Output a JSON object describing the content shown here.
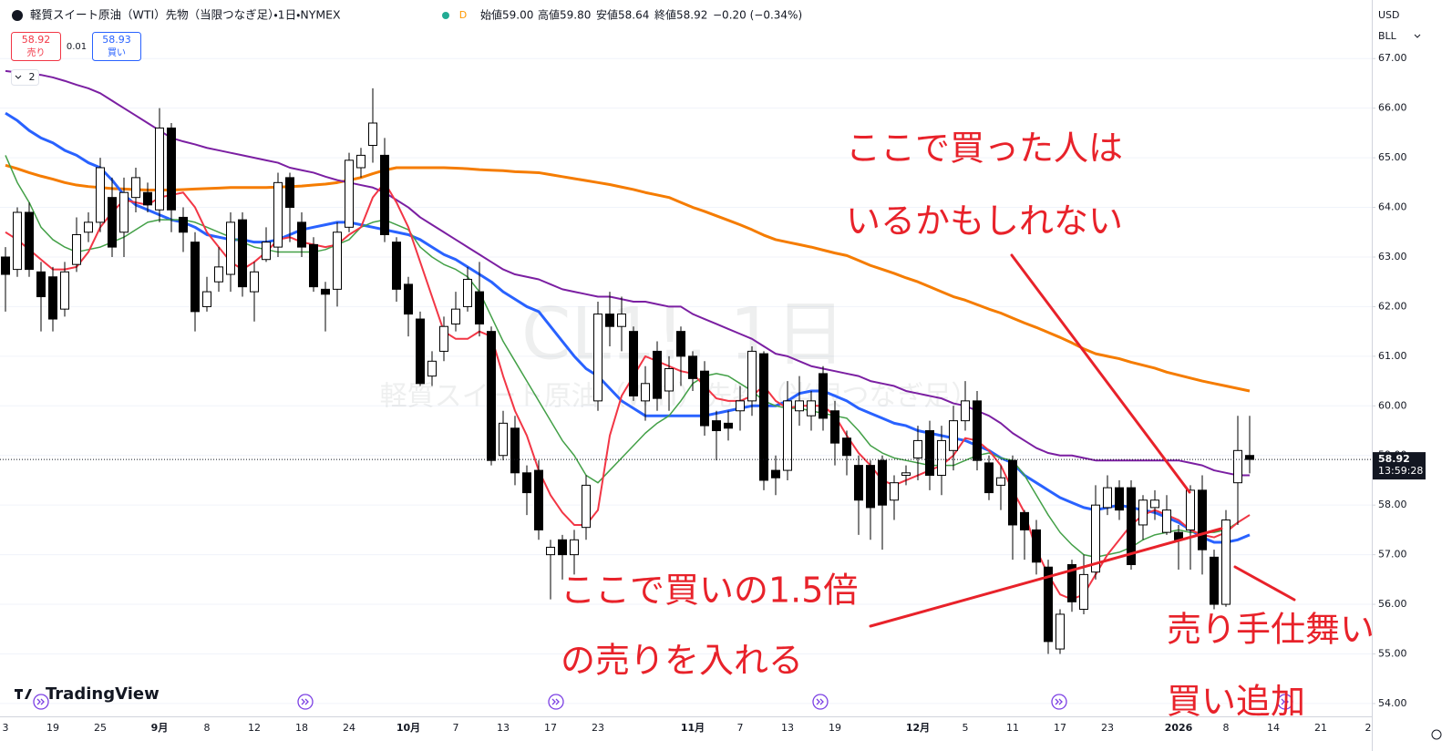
{
  "header": {
    "title": "軽質スイート原油（WTI）先物（当限つなぎ足）・1日・NYMEX",
    "status": "D",
    "ohlc": [
      "始値59.00",
      "高値59.80",
      "安値58.64",
      "終値58.92",
      "−0.20 (−0.34%)"
    ]
  },
  "trade": {
    "sell_price": "58.92",
    "sell_label": "売り",
    "spread": "0.01",
    "buy_price": "58.93",
    "buy_label": "買い"
  },
  "indicators_count": "2",
  "watermark": {
    "symbol": "CL1!, 1日",
    "description": "軽質スイート原油（WTI）先物（当限つなぎ足）"
  },
  "axis": {
    "currency": "USD",
    "unit": "BLL"
  },
  "branding": "TradingView",
  "annotations": [
    "ここで買った人は",
    "いるかもしれない",
    "ここで買いの1.5倍",
    "の売りを入れる",
    "売り手仕舞い",
    "買い追加"
  ],
  "chart_data": {
    "type": "candlestick",
    "categories": [
      "3",
      null,
      null,
      null,
      "19",
      null,
      null,
      null,
      "25",
      null,
      null,
      null,
      null,
      "9月",
      null,
      null,
      null,
      "8",
      null,
      null,
      null,
      "12",
      null,
      null,
      null,
      "18",
      null,
      null,
      null,
      "24",
      null,
      null,
      null,
      null,
      "10月",
      null,
      null,
      null,
      "7",
      null,
      null,
      null,
      "13",
      null,
      null,
      null,
      "17",
      null,
      null,
      null,
      "23",
      null,
      null,
      null,
      null,
      null,
      null,
      null,
      "11月",
      null,
      null,
      null,
      "7",
      null,
      null,
      null,
      "13",
      null,
      null,
      null,
      "19",
      null,
      null,
      null,
      null,
      null,
      null,
      "12月",
      null,
      null,
      null,
      "5",
      null,
      null,
      null,
      "11",
      null,
      null,
      null,
      "17",
      null,
      null,
      null,
      "23",
      null,
      null,
      null,
      null,
      null,
      "2026",
      null,
      null,
      null,
      "8",
      null,
      null,
      null,
      "14",
      null,
      null,
      null,
      "21",
      null,
      null,
      null,
      "2"
    ],
    "open": [
      63.0,
      62.75,
      63.9,
      62.7,
      62.6,
      61.95,
      62.85,
      63.5,
      63.7,
      64.2,
      63.5,
      64.2,
      64.3,
      63.95,
      65.6,
      63.8,
      63.3,
      62.0,
      62.5,
      62.65,
      63.75,
      62.3,
      62.95,
      63.2,
      64.6,
      63.7,
      63.25,
      62.35,
      62.35,
      63.6,
      64.8,
      65.25,
      65.05,
      63.3,
      62.45,
      61.75,
      60.6,
      61.1,
      61.65,
      62.0,
      62.3,
      61.5,
      59.0,
      59.55,
      58.65,
      58.7,
      57.0,
      57.3,
      57.0,
      57.55,
      60.1,
      61.85,
      61.6,
      61.5,
      60.1,
      61.1,
      60.3,
      61.5,
      61.0,
      60.7,
      59.7,
      59.65,
      59.9,
      60.1,
      61.05,
      58.7,
      58.7,
      59.9,
      59.8,
      60.65,
      59.9,
      59.35,
      58.8,
      58.8,
      58.9,
      58.1,
      58.6,
      58.95,
      59.5,
      58.6,
      59.1,
      59.7,
      60.1,
      58.85,
      58.4,
      58.9,
      57.85,
      57.5,
      56.75,
      55.1,
      56.8,
      55.9,
      56.65,
      57.95,
      58.35,
      58.35,
      57.6,
      57.95,
      57.45,
      57.45,
      57.5,
      58.3,
      56.95,
      56.0,
      58.45,
      59.0,
      null,
      null,
      null,
      null,
      null,
      null,
      null,
      null,
      null,
      null
    ],
    "high": [
      63.2,
      64.0,
      64.1,
      62.9,
      62.8,
      62.9,
      63.8,
      63.9,
      65.0,
      64.6,
      64.6,
      64.8,
      64.5,
      66.0,
      65.7,
      64.0,
      63.5,
      62.6,
      63.2,
      63.9,
      63.9,
      62.9,
      63.6,
      64.7,
      64.7,
      63.9,
      63.4,
      62.5,
      63.7,
      65.1,
      65.2,
      66.4,
      65.4,
      63.4,
      62.6,
      61.9,
      61.1,
      61.8,
      62.3,
      62.8,
      62.9,
      61.6,
      59.9,
      59.8,
      58.8,
      58.9,
      57.3,
      57.4,
      57.5,
      58.6,
      62.1,
      62.3,
      62.2,
      61.6,
      60.8,
      61.3,
      61.0,
      61.6,
      61.1,
      60.9,
      59.9,
      59.9,
      60.4,
      61.2,
      61.1,
      59.0,
      60.5,
      60.6,
      60.3,
      60.8,
      60.1,
      59.5,
      59.0,
      58.9,
      59.0,
      58.6,
      58.8,
      59.6,
      59.7,
      59.6,
      60.0,
      60.5,
      60.3,
      59.0,
      58.8,
      59.0,
      57.9,
      57.7,
      56.9,
      55.9,
      56.9,
      57.0,
      58.4,
      58.6,
      58.5,
      58.5,
      58.2,
      58.3,
      58.2,
      57.6,
      58.4,
      58.6,
      57.1,
      57.9,
      59.8,
      59.8,
      null,
      null,
      null,
      null,
      null,
      null,
      null,
      null,
      null,
      null
    ],
    "low": [
      61.9,
      62.6,
      62.6,
      61.5,
      61.5,
      61.8,
      62.7,
      63.3,
      63.5,
      63.0,
      63.0,
      63.9,
      63.9,
      63.7,
      63.5,
      63.1,
      61.5,
      61.9,
      62.3,
      62.3,
      62.2,
      61.7,
      62.9,
      63.0,
      63.3,
      63.0,
      62.3,
      61.5,
      62.0,
      63.5,
      64.6,
      64.9,
      63.3,
      62.1,
      61.4,
      60.4,
      60.4,
      60.9,
      61.5,
      61.9,
      61.4,
      58.8,
      58.9,
      58.4,
      57.8,
      57.3,
      56.1,
      56.5,
      56.6,
      57.3,
      59.9,
      61.2,
      61.1,
      60.1,
      59.7,
      59.9,
      59.9,
      60.4,
      60.3,
      59.4,
      58.9,
      59.3,
      59.5,
      59.8,
      58.3,
      58.2,
      58.5,
      59.6,
      59.5,
      59.5,
      58.8,
      58.6,
      57.4,
      57.3,
      57.1,
      57.7,
      58.4,
      58.5,
      58.3,
      58.2,
      58.7,
      59.5,
      58.7,
      58.1,
      57.9,
      56.9,
      56.9,
      56.6,
      55.0,
      55.0,
      55.85,
      55.8,
      56.5,
      57.8,
      57.7,
      56.7,
      57.3,
      57.7,
      57.4,
      56.7,
      56.7,
      56.6,
      55.9,
      55.95,
      57.6,
      58.64,
      null,
      null,
      null,
      null,
      null,
      null,
      null,
      null,
      null,
      null
    ],
    "close": [
      62.65,
      63.9,
      62.75,
      62.2,
      61.75,
      62.7,
      63.45,
      63.7,
      64.8,
      63.2,
      64.3,
      64.6,
      64.05,
      65.6,
      63.95,
      63.5,
      61.9,
      62.3,
      62.8,
      63.7,
      62.4,
      62.7,
      63.3,
      64.5,
      64.0,
      63.2,
      62.4,
      62.25,
      63.5,
      64.95,
      65.05,
      65.7,
      63.45,
      62.35,
      61.85,
      60.45,
      60.9,
      61.6,
      61.95,
      62.55,
      61.65,
      58.9,
      59.65,
      58.65,
      58.25,
      57.5,
      57.15,
      57.0,
      57.3,
      58.4,
      61.85,
      61.6,
      61.85,
      60.2,
      60.45,
      60.15,
      60.75,
      61.0,
      60.55,
      59.6,
      59.5,
      59.55,
      60.1,
      61.1,
      58.5,
      58.55,
      60.1,
      60.1,
      60.1,
      59.75,
      59.25,
      59.0,
      58.1,
      57.95,
      58.0,
      58.45,
      58.65,
      59.3,
      58.6,
      59.3,
      59.7,
      60.1,
      58.9,
      58.25,
      58.55,
      57.6,
      57.5,
      56.85,
      55.25,
      55.8,
      56.05,
      56.6,
      58.0,
      58.35,
      57.9,
      56.8,
      58.1,
      58.1,
      57.9,
      57.3,
      58.3,
      57.1,
      56.0,
      57.7,
      59.1,
      58.92,
      null,
      null,
      null,
      null,
      null,
      null,
      null,
      null,
      null,
      null
    ],
    "up_color": "#ffffff",
    "down_color": "#000000",
    "lines": [
      {
        "color": "#f57c00",
        "width": 3,
        "values": [
          64.85,
          64.78,
          64.7,
          64.63,
          64.57,
          64.5,
          64.45,
          64.42,
          64.4,
          64.38,
          64.37,
          64.36,
          64.35,
          64.35,
          64.35,
          64.36,
          64.37,
          64.38,
          64.39,
          64.4,
          64.4,
          64.4,
          64.4,
          64.41,
          64.42,
          64.43,
          64.45,
          64.47,
          64.5,
          64.55,
          64.6,
          64.68,
          64.75,
          64.8,
          64.8,
          64.8,
          64.8,
          64.8,
          64.79,
          64.78,
          64.76,
          64.75,
          64.74,
          64.72,
          64.71,
          64.7,
          64.66,
          64.62,
          64.58,
          64.54,
          64.5,
          64.46,
          64.41,
          64.36,
          64.3,
          64.25,
          64.2,
          64.1,
          64.0,
          63.92,
          63.83,
          63.74,
          63.65,
          63.55,
          63.44,
          63.35,
          63.3,
          63.25,
          63.2,
          63.14,
          63.08,
          63.03,
          62.93,
          62.83,
          62.75,
          62.67,
          62.58,
          62.5,
          62.4,
          62.3,
          62.2,
          62.13,
          62.04,
          61.95,
          61.87,
          61.77,
          61.67,
          61.58,
          61.48,
          61.38,
          61.27,
          61.15,
          61.05,
          61.0,
          60.95,
          60.88,
          60.82,
          60.76,
          60.68,
          60.62,
          60.56,
          60.5,
          60.45,
          60.4,
          60.35,
          60.3,
          null,
          null,
          null,
          null,
          null,
          null,
          null,
          null,
          null,
          null
        ]
      },
      {
        "color": "#7b1fa2",
        "width": 2,
        "values": [
          66.75,
          66.72,
          66.7,
          66.67,
          66.62,
          66.55,
          66.47,
          66.4,
          66.3,
          66.15,
          66.0,
          65.85,
          65.7,
          65.55,
          65.4,
          65.33,
          65.27,
          65.2,
          65.15,
          65.1,
          65.05,
          65.0,
          64.95,
          64.9,
          64.8,
          64.75,
          64.7,
          64.62,
          64.55,
          64.5,
          64.45,
          64.4,
          64.3,
          64.15,
          64.0,
          63.8,
          63.65,
          63.5,
          63.35,
          63.2,
          63.05,
          62.9,
          62.75,
          62.65,
          62.6,
          62.55,
          62.45,
          62.35,
          62.3,
          62.25,
          62.2,
          62.2,
          62.15,
          62.1,
          62.1,
          62.05,
          62.0,
          62.0,
          61.85,
          61.75,
          61.65,
          61.55,
          61.45,
          61.35,
          61.2,
          61.05,
          61.0,
          60.9,
          60.8,
          60.75,
          60.7,
          60.65,
          60.6,
          60.5,
          60.45,
          60.4,
          60.3,
          60.25,
          60.2,
          60.15,
          60.05,
          60.0,
          59.9,
          59.8,
          59.65,
          59.45,
          59.3,
          59.15,
          59.05,
          59.0,
          59.0,
          58.95,
          58.9,
          58.9,
          58.9,
          58.9,
          58.9,
          58.9,
          58.9,
          58.9,
          58.85,
          58.8,
          58.7,
          58.65,
          58.6,
          58.6,
          null,
          null,
          null,
          null,
          null,
          null,
          null,
          null,
          null,
          null
        ]
      },
      {
        "color": "#2962ff",
        "width": 3,
        "values": [
          65.9,
          65.75,
          65.55,
          65.4,
          65.3,
          65.15,
          65.05,
          64.9,
          64.8,
          64.55,
          64.25,
          64.05,
          63.95,
          63.85,
          63.75,
          63.7,
          63.6,
          63.45,
          63.4,
          63.35,
          63.35,
          63.3,
          63.3,
          63.35,
          63.45,
          63.55,
          63.6,
          63.65,
          63.7,
          63.7,
          63.65,
          63.6,
          63.55,
          63.5,
          63.45,
          63.35,
          63.2,
          63.05,
          62.95,
          62.8,
          62.65,
          62.5,
          62.3,
          62.15,
          62.0,
          61.9,
          61.6,
          61.3,
          61.0,
          60.75,
          60.6,
          60.35,
          60.1,
          59.95,
          59.8,
          59.8,
          59.8,
          59.8,
          59.8,
          59.8,
          59.85,
          59.9,
          59.95,
          60.0,
          60.0,
          60.0,
          60.1,
          60.25,
          60.3,
          60.3,
          60.2,
          60.1,
          59.95,
          59.85,
          59.75,
          59.65,
          59.6,
          59.5,
          59.45,
          59.4,
          59.35,
          59.3,
          59.2,
          59.1,
          58.95,
          58.85,
          58.6,
          58.45,
          58.3,
          58.15,
          58.05,
          57.95,
          57.9,
          57.95,
          58.0,
          57.95,
          57.9,
          57.85,
          57.75,
          57.65,
          57.5,
          57.35,
          57.25,
          57.25,
          57.3,
          57.4,
          null,
          null,
          null,
          null,
          null,
          null,
          null,
          null,
          null,
          null
        ]
      },
      {
        "color": "#43a047",
        "width": 1.5,
        "values": [
          65.05,
          64.5,
          64.1,
          63.6,
          63.35,
          63.2,
          63.1,
          63.15,
          63.2,
          63.3,
          63.4,
          63.55,
          63.7,
          63.75,
          63.75,
          63.75,
          63.7,
          63.6,
          63.5,
          63.4,
          63.3,
          63.2,
          63.15,
          63.1,
          63.1,
          63.1,
          63.1,
          63.15,
          63.25,
          63.35,
          63.6,
          63.7,
          63.75,
          63.65,
          63.55,
          63.2,
          63.0,
          62.85,
          62.75,
          62.6,
          62.3,
          61.8,
          61.3,
          60.9,
          60.5,
          60.1,
          59.7,
          59.3,
          59.0,
          58.6,
          58.45,
          58.7,
          58.95,
          59.2,
          59.45,
          59.65,
          59.8,
          60.1,
          60.45,
          60.6,
          60.65,
          60.6,
          60.45,
          60.3,
          60.1,
          60.0,
          59.95,
          59.95,
          59.9,
          59.85,
          59.8,
          59.75,
          59.5,
          59.2,
          59.05,
          58.95,
          58.9,
          58.85,
          58.8,
          58.8,
          58.8,
          58.9,
          59.0,
          59.05,
          58.95,
          58.9,
          58.6,
          58.2,
          57.8,
          57.45,
          57.2,
          57.0,
          56.95,
          57.0,
          57.05,
          57.15,
          57.3,
          57.4,
          57.45,
          57.5,
          57.45,
          57.45,
          57.45,
          57.5,
          57.65,
          57.8,
          null,
          null,
          null,
          null,
          null,
          null,
          null,
          null,
          null,
          null
        ]
      },
      {
        "color": "#f23645",
        "width": 2,
        "values": [
          63.5,
          63.35,
          63.15,
          62.95,
          62.75,
          62.75,
          62.8,
          63.1,
          63.6,
          63.9,
          64.15,
          64.1,
          64.05,
          64.2,
          64.25,
          64.3,
          64.0,
          63.5,
          63.2,
          62.9,
          62.75,
          62.9,
          63.1,
          63.35,
          63.4,
          63.3,
          63.25,
          63.2,
          63.25,
          63.45,
          63.6,
          64.2,
          64.5,
          64.1,
          63.6,
          62.9,
          62.2,
          61.5,
          61.35,
          61.35,
          61.5,
          61.4,
          60.6,
          59.9,
          59.4,
          58.7,
          58.2,
          57.85,
          57.6,
          57.6,
          57.9,
          59.4,
          60.2,
          60.6,
          61.0,
          60.9,
          60.8,
          60.7,
          60.65,
          60.4,
          60.15,
          60.1,
          60.1,
          60.2,
          60.4,
          60.1,
          59.95,
          60.0,
          60.0,
          60.0,
          59.8,
          59.4,
          59.05,
          58.8,
          58.5,
          58.4,
          58.5,
          58.6,
          58.7,
          58.8,
          59.0,
          59.35,
          59.3,
          59.1,
          58.8,
          58.3,
          57.85,
          57.1,
          56.6,
          56.2,
          56.1,
          56.2,
          56.6,
          57.0,
          57.3,
          57.6,
          57.8,
          57.9,
          57.8,
          57.7,
          57.5,
          57.4,
          57.35,
          57.45,
          57.65,
          57.8,
          null,
          null,
          null,
          null,
          null,
          null,
          null,
          null,
          null,
          null
        ]
      }
    ],
    "ylim": [
      53.76,
      68.18
    ],
    "yticks": [
      {
        "value": 54,
        "label": "54.00"
      },
      {
        "value": 55,
        "label": "55.00"
      },
      {
        "value": 56,
        "label": "56.00"
      },
      {
        "value": 57,
        "label": "57.00"
      },
      {
        "value": 58,
        "label": "58.00"
      },
      {
        "value": 59,
        "label": "59.00"
      },
      {
        "value": 60,
        "label": "60.00"
      },
      {
        "value": 61,
        "label": "61.00"
      },
      {
        "value": 62,
        "label": "62.00"
      },
      {
        "value": 63,
        "label": "63.00"
      },
      {
        "value": 64,
        "label": "64.00"
      },
      {
        "value": 65,
        "label": "65.00"
      },
      {
        "value": 66,
        "label": "66.00"
      },
      {
        "value": 67,
        "label": "67.00"
      }
    ],
    "grid": true,
    "last_price": 58.92,
    "countdown": "13:59:28"
  }
}
